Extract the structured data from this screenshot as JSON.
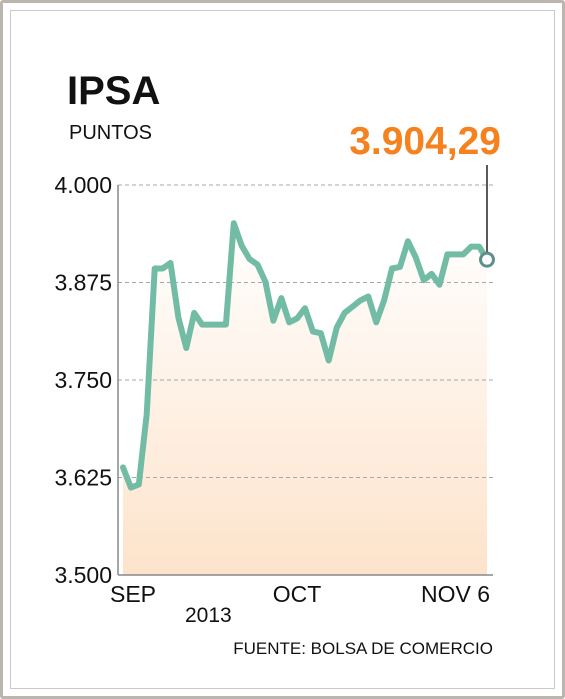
{
  "chart_data": {
    "type": "line",
    "title": "IPSA",
    "subtitle": "PUNTOS",
    "ylim": [
      3500,
      4000
    ],
    "yticks": [
      "4.000",
      "3.875",
      "3.750",
      "3.625",
      "3.500"
    ],
    "ytick_values": [
      4000,
      3875,
      3750,
      3625,
      3500
    ],
    "xticks": [
      "SEP",
      "OCT",
      "NOV 6"
    ],
    "year_label": "2013",
    "source": "FUENTE: BOLSA DE COMERCIO",
    "last_value_label": "3.904,29",
    "grid": "horizontal-dashed",
    "series": [
      {
        "values": [
          3638,
          3612,
          3616,
          3706,
          3893,
          3893,
          3900,
          3830,
          3791,
          3836,
          3821,
          3821,
          3821,
          3821,
          3951,
          3922,
          3905,
          3898,
          3876,
          3826,
          3855,
          3824,
          3829,
          3842,
          3812,
          3810,
          3775,
          3817,
          3836,
          3844,
          3852,
          3857,
          3824,
          3852,
          3893,
          3895,
          3928,
          3907,
          3878,
          3886,
          3872,
          3911,
          3911,
          3911,
          3921,
          3921,
          3904.29
        ]
      }
    ]
  },
  "colors": {
    "line": "#72bca6",
    "accent": "#f5821f",
    "marker_stroke": "#5f8f8c",
    "area_top": "#ffffff",
    "area_bottom": "#fde3cb",
    "grid": "#a8a8a8",
    "axis": "#888888"
  }
}
